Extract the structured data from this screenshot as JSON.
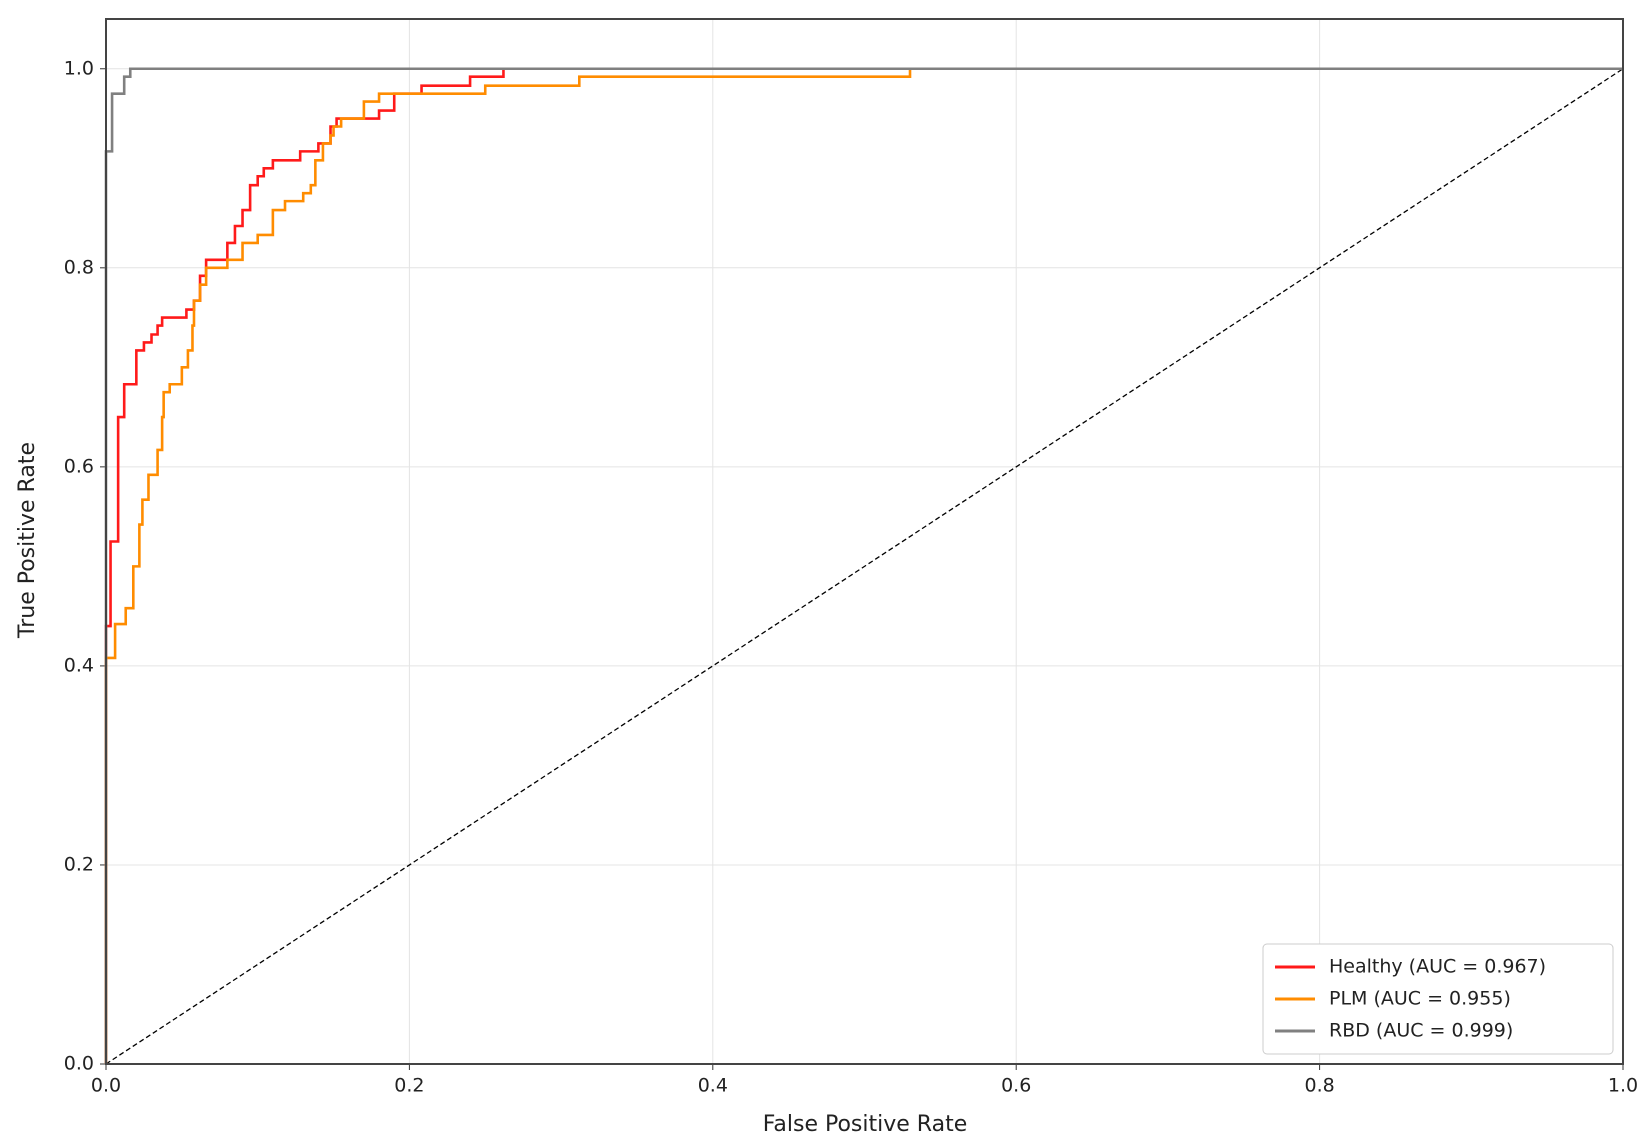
{
  "chart_data": {
    "type": "line",
    "xlabel": "False Positive Rate",
    "ylabel": "True Positive Rate",
    "xlim": [
      0,
      1
    ],
    "ylim": [
      0,
      1.05
    ],
    "xticks": [
      {
        "value": 0,
        "label": "0.0"
      },
      {
        "value": 0.2,
        "label": "0.2"
      },
      {
        "value": 0.4,
        "label": "0.4"
      },
      {
        "value": 0.6,
        "label": "0.6"
      },
      {
        "value": 0.8,
        "label": "0.8"
      },
      {
        "value": 1,
        "label": "1.0"
      }
    ],
    "yticks": [
      {
        "value": 0,
        "label": "0.0"
      },
      {
        "value": 0.2,
        "label": "0.2"
      },
      {
        "value": 0.4,
        "label": "0.4"
      },
      {
        "value": 0.6,
        "label": "0.6"
      },
      {
        "value": 0.8,
        "label": "0.8"
      },
      {
        "value": 1,
        "label": "1.0"
      }
    ],
    "grid": true,
    "legend": "lower right",
    "series": [
      {
        "name": "Healthy (AUC = 0.967)",
        "color": "#ff1a1a",
        "x": [
          0,
          0,
          0.003,
          0.003,
          0.008,
          0.008,
          0.012,
          0.012,
          0.02,
          0.02,
          0.025,
          0.025,
          0.03,
          0.03,
          0.034,
          0.034,
          0.037,
          0.037,
          0.053,
          0.053,
          0.058,
          0.058,
          0.062,
          0.062,
          0.066,
          0.066,
          0.08,
          0.08,
          0.085,
          0.085,
          0.09,
          0.09,
          0.095,
          0.095,
          0.1,
          0.1,
          0.104,
          0.104,
          0.11,
          0.11,
          0.128,
          0.128,
          0.14,
          0.14,
          0.148,
          0.148,
          0.152,
          0.152,
          0.18,
          0.18,
          0.19,
          0.19,
          0.208,
          0.208,
          0.24,
          0.24,
          0.262,
          0.262,
          1
        ],
        "values": [
          0,
          0.44,
          0.44,
          0.525,
          0.525,
          0.65,
          0.65,
          0.683,
          0.683,
          0.717,
          0.717,
          0.725,
          0.725,
          0.733,
          0.733,
          0.742,
          0.742,
          0.75,
          0.75,
          0.758,
          0.758,
          0.767,
          0.767,
          0.792,
          0.792,
          0.808,
          0.808,
          0.825,
          0.825,
          0.842,
          0.842,
          0.858,
          0.858,
          0.883,
          0.883,
          0.892,
          0.892,
          0.9,
          0.9,
          0.908,
          0.908,
          0.917,
          0.917,
          0.925,
          0.925,
          0.942,
          0.942,
          0.95,
          0.95,
          0.958,
          0.958,
          0.975,
          0.975,
          0.983,
          0.983,
          0.992,
          0.992,
          1,
          1
        ]
      },
      {
        "name": "PLM (AUC = 0.955)",
        "color": "#ff8c00",
        "x": [
          0,
          0,
          0.006,
          0.006,
          0.013,
          0.013,
          0.018,
          0.018,
          0.022,
          0.022,
          0.024,
          0.024,
          0.028,
          0.028,
          0.034,
          0.034,
          0.037,
          0.037,
          0.038,
          0.038,
          0.042,
          0.042,
          0.05,
          0.05,
          0.054,
          0.054,
          0.057,
          0.057,
          0.058,
          0.058,
          0.062,
          0.062,
          0.066,
          0.066,
          0.08,
          0.08,
          0.09,
          0.09,
          0.1,
          0.1,
          0.11,
          0.11,
          0.118,
          0.118,
          0.13,
          0.13,
          0.135,
          0.135,
          0.138,
          0.138,
          0.143,
          0.143,
          0.148,
          0.148,
          0.15,
          0.15,
          0.155,
          0.155,
          0.17,
          0.17,
          0.18,
          0.18,
          0.25,
          0.25,
          0.312,
          0.312,
          0.53,
          0.53,
          1
        ],
        "values": [
          0,
          0.408,
          0.408,
          0.442,
          0.442,
          0.458,
          0.458,
          0.5,
          0.5,
          0.542,
          0.542,
          0.567,
          0.567,
          0.592,
          0.592,
          0.617,
          0.617,
          0.65,
          0.65,
          0.675,
          0.675,
          0.683,
          0.683,
          0.7,
          0.7,
          0.717,
          0.717,
          0.742,
          0.742,
          0.767,
          0.767,
          0.783,
          0.783,
          0.8,
          0.8,
          0.808,
          0.808,
          0.825,
          0.825,
          0.833,
          0.833,
          0.858,
          0.858,
          0.867,
          0.867,
          0.875,
          0.875,
          0.883,
          0.883,
          0.908,
          0.908,
          0.925,
          0.925,
          0.933,
          0.933,
          0.942,
          0.942,
          0.95,
          0.95,
          0.967,
          0.967,
          0.975,
          0.975,
          0.983,
          0.983,
          0.992,
          0.992,
          1,
          1
        ]
      },
      {
        "name": "RBD (AUC = 0.999)",
        "color": "#808080",
        "x": [
          0,
          0,
          0.004,
          0.004,
          0.012,
          0.012,
          0.016,
          0.016,
          1
        ],
        "values": [
          0,
          0.917,
          0.917,
          0.975,
          0.975,
          0.992,
          0.992,
          1,
          1
        ]
      },
      {
        "color": "#000000",
        "linestyle": "dashed",
        "x": [
          0,
          1
        ],
        "values": [
          0,
          1
        ]
      }
    ]
  }
}
